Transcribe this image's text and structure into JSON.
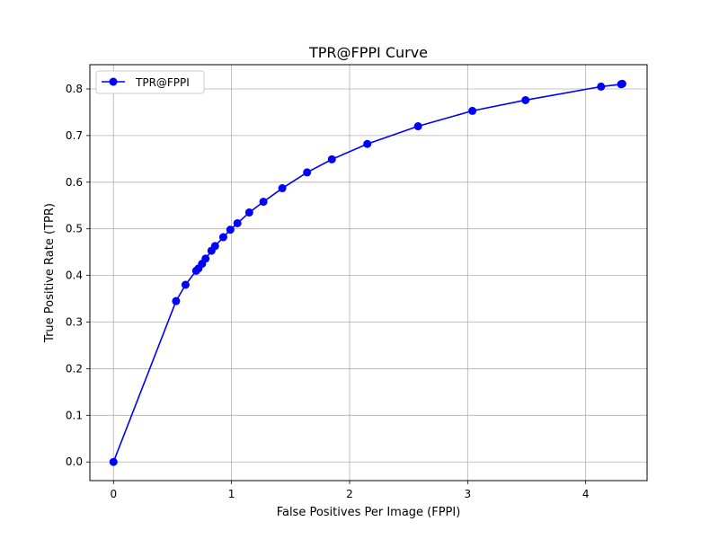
{
  "chart_data": {
    "type": "line",
    "title": "TPR@FPPI Curve",
    "xlabel": "False Positives Per Image (FPPI)",
    "ylabel": "True Positive Rate (TPR)",
    "xlim": [
      -0.2,
      4.52
    ],
    "ylim": [
      -0.04,
      0.852
    ],
    "xticks": [
      0,
      1,
      2,
      3,
      4
    ],
    "xtick_labels": [
      "0",
      "1",
      "2",
      "3",
      "4"
    ],
    "yticks": [
      0.0,
      0.1,
      0.2,
      0.3,
      0.4,
      0.5,
      0.6,
      0.7,
      0.8
    ],
    "ytick_labels": [
      "0.0",
      "0.1",
      "0.2",
      "0.3",
      "0.4",
      "0.5",
      "0.6",
      "0.7",
      "0.8"
    ],
    "grid": true,
    "legend_position": "top-left",
    "series": [
      {
        "name": "TPR@FPPI",
        "color": "#0000ff",
        "marker": "circle",
        "x": [
          0.0,
          0.53,
          0.61,
          0.7,
          0.72,
          0.75,
          0.78,
          0.83,
          0.86,
          0.93,
          0.99,
          1.05,
          1.15,
          1.27,
          1.43,
          1.64,
          1.85,
          2.15,
          2.58,
          3.04,
          3.49,
          4.13,
          4.3,
          4.31
        ],
        "y": [
          0.0,
          0.345,
          0.38,
          0.41,
          0.415,
          0.425,
          0.436,
          0.453,
          0.463,
          0.482,
          0.498,
          0.512,
          0.535,
          0.558,
          0.587,
          0.621,
          0.649,
          0.682,
          0.72,
          0.753,
          0.776,
          0.805,
          0.81,
          0.811
        ]
      }
    ]
  }
}
